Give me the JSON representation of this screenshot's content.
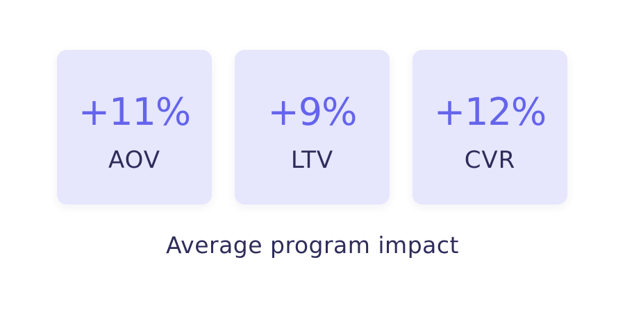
{
  "stats": [
    {
      "value": "+11%",
      "label": "AOV"
    },
    {
      "value": "+9%",
      "label": "LTV"
    },
    {
      "value": "+12%",
      "label": "CVR"
    }
  ],
  "caption": "Average program impact",
  "colors": {
    "card_background": "#e6e6fd",
    "value_text": "#6464ec",
    "label_text": "#2e2c5a",
    "page_background": "#ffffff"
  }
}
